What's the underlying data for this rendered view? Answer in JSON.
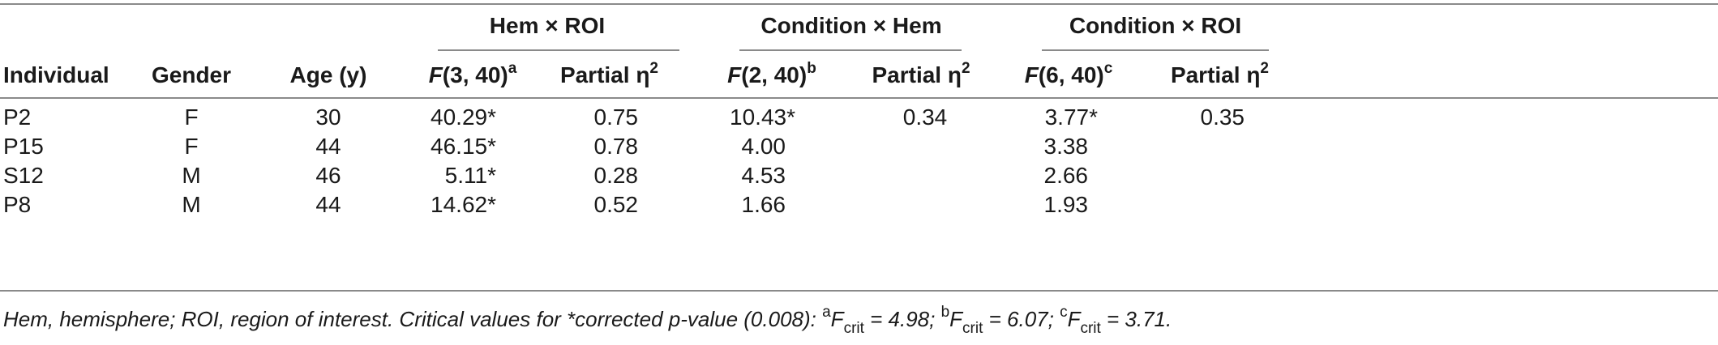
{
  "table": {
    "group_headers": {
      "hem_roi": "Hem × ROI",
      "condition_hem": "Condition × Hem",
      "condition_roi": "Condition × ROI"
    },
    "col_headers": {
      "individual": "Individual",
      "gender": "Gender",
      "age": "Age (y)",
      "f1_letter": "F",
      "f1_df": "(3, 40)",
      "f1_sup": "a",
      "eta1_label": "Partial η",
      "eta1_sup": "2",
      "f2_letter": "F",
      "f2_df": "(2, 40)",
      "f2_sup": "b",
      "eta2_label": "Partial η",
      "eta2_sup": "2",
      "f3_letter": "F",
      "f3_df": "(6, 40)",
      "f3_sup": "c",
      "eta3_label": "Partial η",
      "eta3_sup": "2"
    },
    "rows": [
      {
        "individual": "P2",
        "gender": "F",
        "age": "30",
        "f1": "40.29*",
        "eta1": "0.75",
        "f2": "10.43*",
        "eta2": "0.34",
        "f3": "3.77*",
        "eta3": "0.35"
      },
      {
        "individual": "P15",
        "gender": "F",
        "age": "44",
        "f1": "46.15*",
        "eta1": "0.78",
        "f2": "4.00",
        "eta2": "",
        "f3": "3.38",
        "eta3": ""
      },
      {
        "individual": "S12",
        "gender": "M",
        "age": "46",
        "f1": "5.11*",
        "eta1": "0.28",
        "f2": "4.53",
        "eta2": "",
        "f3": "2.66",
        "eta3": ""
      },
      {
        "individual": "P8",
        "gender": "M",
        "age": "44",
        "f1": "14.62*",
        "eta1": "0.52",
        "f2": "1.66",
        "eta2": "",
        "f3": "1.93",
        "eta3": ""
      }
    ]
  },
  "footnote": {
    "text": "Hem, hemisphere; ROI, region of interest. Critical values for *corrected p-value (0.008): ",
    "a_sup": "a",
    "a_F": "F",
    "a_sub": "crit",
    "a_val": " = 4.98; ",
    "b_sup": "b",
    "b_F": "F",
    "b_sub": "crit",
    "b_val": " = 6.07; ",
    "c_sup": "c",
    "c_F": "F",
    "c_sub": "crit",
    "c_val": " = 3.71."
  }
}
